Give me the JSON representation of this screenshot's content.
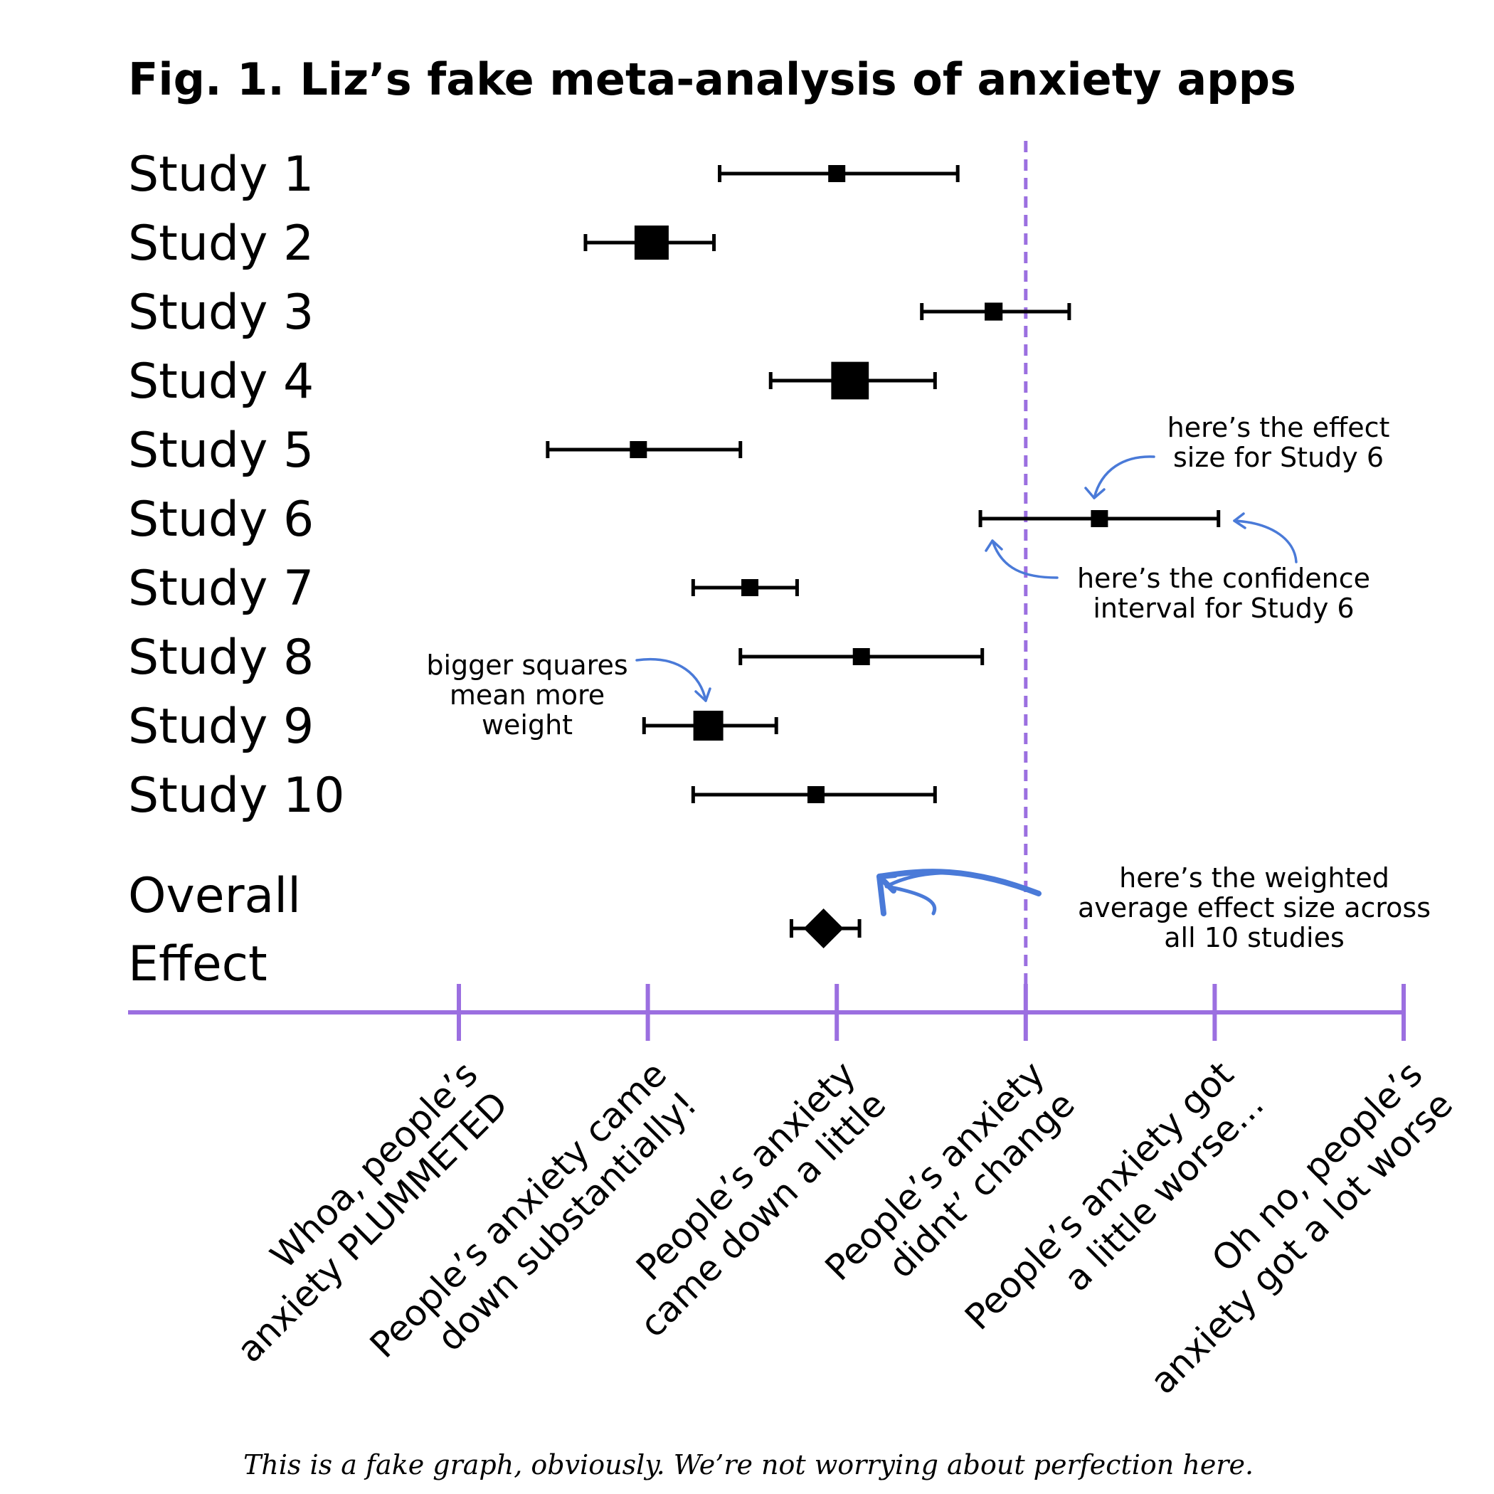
{
  "chart_data": {
    "type": "forest",
    "title": "Fig. 1. Liz’s fake meta-analysis of anxiety apps",
    "footnote": "This is a fake graph, obviously. We’re not worrying about perfection here.",
    "x_scale": {
      "min": -3,
      "max": 2,
      "null_value": 0,
      "tick_values": [
        -3,
        -2,
        -1,
        0,
        1,
        2
      ],
      "tick_labels": [
        [
          "Whoa, people’s",
          "anxiety PLUMMETED"
        ],
        [
          "People’s anxiety came",
          "down substantially!"
        ],
        [
          "People’s anxiety",
          "came down a little"
        ],
        [
          "People’s anxiety",
          "didnt’ change"
        ],
        [
          "People’s anxiety got",
          "a little worse..."
        ],
        [
          "Oh no, people’s",
          "anxiety got a lot worse"
        ]
      ]
    },
    "studies": [
      {
        "label": "Study 1",
        "effect": -1.0,
        "ci_low": -1.62,
        "ci_high": -0.36,
        "weight": 1.0
      },
      {
        "label": "Study 2",
        "effect": -1.98,
        "ci_low": -2.33,
        "ci_high": -1.65,
        "weight": 2.0
      },
      {
        "label": "Study 3",
        "effect": -0.17,
        "ci_low": -0.55,
        "ci_high": 0.23,
        "weight": 1.05
      },
      {
        "label": "Study 4",
        "effect": -0.93,
        "ci_low": -1.35,
        "ci_high": -0.48,
        "weight": 2.2
      },
      {
        "label": "Study 5",
        "effect": -2.05,
        "ci_low": -2.53,
        "ci_high": -1.51,
        "weight": 1.0
      },
      {
        "label": "Study 6",
        "effect": 0.39,
        "ci_low": -0.24,
        "ci_high": 1.02,
        "weight": 1.0
      },
      {
        "label": "Study 7",
        "effect": -1.46,
        "ci_low": -1.76,
        "ci_high": -1.21,
        "weight": 1.0
      },
      {
        "label": "Study 8",
        "effect": -0.87,
        "ci_low": -1.51,
        "ci_high": -0.23,
        "weight": 1.0
      },
      {
        "label": "Study 9",
        "effect": -1.68,
        "ci_low": -2.02,
        "ci_high": -1.32,
        "weight": 1.75
      },
      {
        "label": "Study 10",
        "effect": -1.11,
        "ci_low": -1.76,
        "ci_high": -0.48,
        "weight": 1.0
      }
    ],
    "overall": {
      "label_lines": [
        "Overall",
        "Effect"
      ],
      "effect": -1.07,
      "ci_low": -1.24,
      "ci_high": -0.88
    },
    "annotations": [
      {
        "id": "effect-size",
        "lines": [
          "here’s the effect",
          "size for Study 6"
        ]
      },
      {
        "id": "confidence-interval",
        "lines": [
          "here’s the confidence",
          "interval for Study 6"
        ]
      },
      {
        "id": "squares-weight",
        "lines": [
          "bigger squares",
          "mean more",
          "weight"
        ]
      },
      {
        "id": "weighted-average",
        "lines": [
          "here’s the weighted",
          "average effect size across",
          "all 10 studies"
        ]
      }
    ],
    "colors": {
      "axis": "#9b6fe0",
      "null_line": "#9b6fe0",
      "marks": "#000000",
      "annotation_arrows": "#4a7ad8"
    }
  }
}
